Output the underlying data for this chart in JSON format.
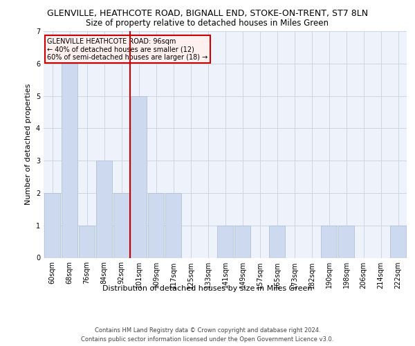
{
  "title_line1": "GLENVILLE, HEATHCOTE ROAD, BIGNALL END, STOKE-ON-TRENT, ST7 8LN",
  "title_line2": "Size of property relative to detached houses in Miles Green",
  "xlabel": "Distribution of detached houses by size in Miles Green",
  "ylabel": "Number of detached properties",
  "categories": [
    "60sqm",
    "68sqm",
    "76sqm",
    "84sqm",
    "92sqm",
    "101sqm",
    "109sqm",
    "117sqm",
    "125sqm",
    "133sqm",
    "141sqm",
    "149sqm",
    "157sqm",
    "165sqm",
    "173sqm",
    "182sqm",
    "190sqm",
    "198sqm",
    "206sqm",
    "214sqm",
    "222sqm"
  ],
  "values": [
    2,
    6,
    1,
    3,
    2,
    5,
    2,
    2,
    0,
    0,
    1,
    1,
    0,
    1,
    0,
    0,
    1,
    1,
    0,
    0,
    1
  ],
  "bar_color": "#ccd9ee",
  "bar_edge_color": "#aabbd4",
  "ylim": [
    0,
    7
  ],
  "yticks": [
    0,
    1,
    2,
    3,
    4,
    5,
    6,
    7
  ],
  "property_line_label": "GLENVILLE HEATHCOTE ROAD: 96sqm",
  "annotation_line1": "← 40% of detached houses are smaller (12)",
  "annotation_line2": "60% of semi-detached houses are larger (18) →",
  "ref_line_color": "#cc0000",
  "annotation_box_facecolor": "#fff0f0",
  "annotation_box_edge": "#cc0000",
  "footer_line1": "Contains HM Land Registry data © Crown copyright and database right 2024.",
  "footer_line2": "Contains public sector information licensed under the Open Government Licence v3.0.",
  "background_color": "#eef2fa",
  "grid_color": "#cdd5e5",
  "title1_fontsize": 9,
  "title2_fontsize": 8.5,
  "tick_fontsize": 7,
  "ylabel_fontsize": 8,
  "xlabel_fontsize": 8,
  "footer_fontsize": 6,
  "annot_fontsize": 7
}
